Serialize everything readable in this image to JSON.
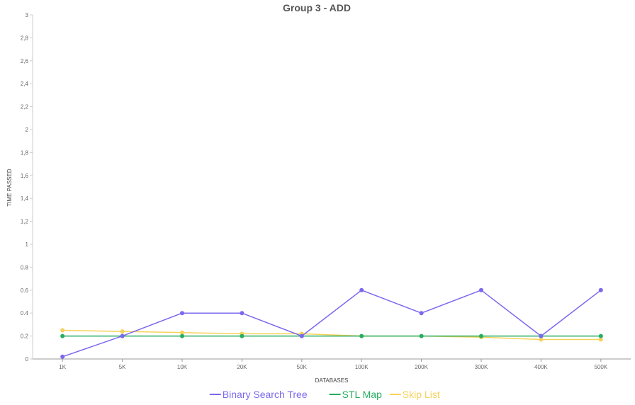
{
  "chart_data": {
    "type": "line",
    "title": "Group 3 - ADD",
    "xlabel": "DATABASES",
    "ylabel": "TIME PASSED",
    "categories": [
      "1K",
      "5K",
      "10K",
      "20K",
      "50K",
      "100K",
      "200K",
      "300K",
      "400K",
      "500K"
    ],
    "ylim": [
      0,
      3
    ],
    "yticks": [
      "0",
      "0.2",
      "0.4",
      "0.6",
      "0.8",
      "1",
      "1,2",
      "1,4",
      "1,6",
      "1,8",
      "2",
      "2,2",
      "2,4",
      "2,6",
      "2,8",
      "3"
    ],
    "grid": false,
    "legend_position": "bottom",
    "series": [
      {
        "name": "Binary Search Tree",
        "color": "#7b68ee",
        "values": [
          0.02,
          0.2,
          0.4,
          0.4,
          0.2,
          0.6,
          0.4,
          0.6,
          0.2,
          0.6
        ]
      },
      {
        "name": "STL Map",
        "color": "#27ae60",
        "values": [
          0.2,
          0.2,
          0.2,
          0.2,
          0.2,
          0.2,
          0.2,
          0.2,
          0.2,
          0.2
        ]
      },
      {
        "name": "Skip List",
        "color": "#f7d25a",
        "values": [
          0.25,
          0.24,
          0.23,
          0.22,
          0.22,
          0.2,
          0.2,
          0.19,
          0.17,
          0.17
        ]
      }
    ]
  }
}
